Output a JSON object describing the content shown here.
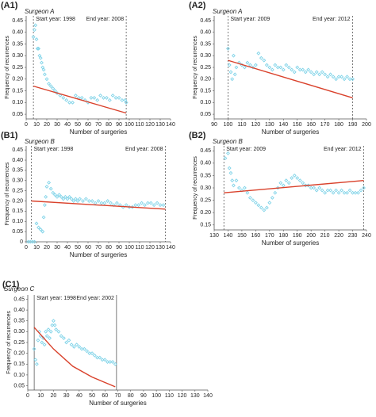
{
  "chart_data": [
    {
      "type": "scatter",
      "panel_label": "(A1)",
      "surgeon": "Surgeon A",
      "start_text": "Start year: 1998",
      "end_text": "End year: 2008",
      "x_label": "Number of surgeries",
      "y_label": "Frequency of recurrences",
      "xlim": [
        0,
        140
      ],
      "xticks": [
        0,
        10,
        20,
        30,
        40,
        50,
        60,
        70,
        80,
        90,
        100,
        110,
        120,
        130,
        140
      ],
      "ylim": [
        0.03,
        0.47
      ],
      "yticks": [
        0.05,
        {
          "value": 0.1,
          "label": "0.10"
        },
        0.15,
        {
          "value": 0.2,
          "label": "0.20"
        },
        0.25,
        {
          "value": 0.3,
          "label": "0.30"
        },
        0.35,
        {
          "value": 0.4,
          "label": "0.40"
        },
        0.45
      ],
      "vlines": [
        7,
        97
      ],
      "points": {
        "color": "#7fd3e8",
        "x": [
          7,
          8,
          9,
          10,
          11,
          12,
          13,
          14,
          15,
          16,
          17,
          18,
          20,
          22,
          24,
          26,
          28,
          30,
          33,
          36,
          39,
          42,
          45,
          48,
          51,
          54,
          57,
          60,
          63,
          66,
          69,
          72,
          75,
          78,
          81,
          84,
          87,
          90,
          93,
          96,
          97
        ],
        "values": [
          0.38,
          0.41,
          0.43,
          0.37,
          0.33,
          0.33,
          0.3,
          0.29,
          0.27,
          0.25,
          0.24,
          0.22,
          0.2,
          0.18,
          0.17,
          0.16,
          0.15,
          0.14,
          0.13,
          0.12,
          0.11,
          0.1,
          0.1,
          0.13,
          0.12,
          0.12,
          0.11,
          0.1,
          0.12,
          0.12,
          0.11,
          0.13,
          0.12,
          0.12,
          0.11,
          0.13,
          0.12,
          0.12,
          0.11,
          0.11,
          0.1
        ]
      },
      "trend": {
        "color": "#d9412b",
        "x": [
          7,
          97
        ],
        "values": [
          0.17,
          0.055
        ]
      }
    },
    {
      "type": "scatter",
      "panel_label": "(A2)",
      "surgeon": "Surgeon A",
      "start_text": "Start year: 2009",
      "end_text": "End year: 2012",
      "x_label": "Number of surgeries",
      "y_label": "Frequency of recurrences",
      "xlim": [
        90,
        200
      ],
      "xticks": [
        90,
        100,
        110,
        120,
        130,
        140,
        150,
        160,
        170,
        180,
        190,
        200
      ],
      "ylim": [
        0.03,
        0.47
      ],
      "yticks": [
        0.05,
        {
          "value": 0.1,
          "label": "0.10"
        },
        0.15,
        {
          "value": 0.2,
          "label": "0.20"
        },
        0.25,
        {
          "value": 0.3,
          "label": "0.30"
        },
        0.35,
        {
          "value": 0.4,
          "label": "0.40"
        },
        0.45
      ],
      "vlines": [
        100,
        190
      ],
      "points": {
        "color": "#7fd3e8",
        "x": [
          100,
          101,
          102,
          103,
          104,
          105,
          106,
          108,
          110,
          112,
          114,
          116,
          118,
          120,
          122,
          124,
          126,
          128,
          130,
          132,
          134,
          136,
          138,
          140,
          142,
          144,
          146,
          148,
          150,
          152,
          154,
          156,
          158,
          160,
          162,
          164,
          166,
          168,
          170,
          172,
          174,
          176,
          178,
          180,
          182,
          184,
          186,
          188,
          190
        ],
        "values": [
          0.33,
          0.26,
          0.23,
          0.2,
          0.3,
          0.22,
          0.25,
          0.27,
          0.26,
          0.25,
          0.27,
          0.26,
          0.25,
          0.26,
          0.31,
          0.29,
          0.28,
          0.26,
          0.25,
          0.24,
          0.26,
          0.25,
          0.25,
          0.24,
          0.26,
          0.25,
          0.24,
          0.23,
          0.25,
          0.24,
          0.24,
          0.23,
          0.24,
          0.23,
          0.22,
          0.23,
          0.22,
          0.23,
          0.22,
          0.21,
          0.22,
          0.21,
          0.2,
          0.21,
          0.21,
          0.2,
          0.21,
          0.2,
          0.2
        ]
      },
      "trend": {
        "color": "#d9412b",
        "x": [
          100,
          190
        ],
        "values": [
          0.28,
          0.12
        ]
      }
    },
    {
      "type": "scatter",
      "panel_label": "(B1)",
      "surgeon": "Surgeon B",
      "start_text": "Start year: 1998",
      "end_text": "End year: 2008",
      "x_label": "Number of surgeries",
      "y_label": "Frequency of recurrences",
      "xlim": [
        0,
        140
      ],
      "xticks": [
        0,
        10,
        20,
        30,
        40,
        50,
        60,
        70,
        80,
        90,
        100,
        110,
        120,
        130,
        140
      ],
      "ylim": [
        0,
        0.47
      ],
      "yticks": [
        0,
        0.05,
        {
          "value": 0.1,
          "label": "0.10"
        },
        0.15,
        {
          "value": 0.2,
          "label": "0.20"
        },
        0.25,
        {
          "value": 0.3,
          "label": "0.30"
        },
        0.35,
        {
          "value": 0.4,
          "label": "0.40"
        },
        0.45
      ],
      "vlines": [
        5,
        135
      ],
      "points": {
        "color": "#7fd3e8",
        "x": [
          2,
          4,
          6,
          8,
          10,
          12,
          14,
          16,
          17,
          18,
          19,
          20,
          22,
          24,
          26,
          28,
          30,
          32,
          34,
          36,
          38,
          40,
          42,
          44,
          46,
          48,
          50,
          52,
          55,
          58,
          61,
          64,
          67,
          70,
          73,
          76,
          79,
          82,
          85,
          88,
          91,
          94,
          97,
          100,
          103,
          106,
          109,
          112,
          115,
          118,
          121,
          124,
          127,
          130,
          133
        ],
        "values": [
          0,
          0,
          0,
          0,
          0.09,
          0.07,
          0.06,
          0.05,
          0.12,
          0.18,
          0.22,
          0.27,
          0.29,
          0.26,
          0.24,
          0.23,
          0.22,
          0.23,
          0.22,
          0.21,
          0.22,
          0.21,
          0.22,
          0.21,
          0.2,
          0.21,
          0.2,
          0.21,
          0.2,
          0.21,
          0.2,
          0.2,
          0.19,
          0.2,
          0.19,
          0.19,
          0.2,
          0.19,
          0.18,
          0.19,
          0.18,
          0.17,
          0.18,
          0.17,
          0.17,
          0.18,
          0.18,
          0.19,
          0.18,
          0.19,
          0.19,
          0.18,
          0.19,
          0.18,
          0.18
        ]
      },
      "trend": {
        "color": "#d9412b",
        "x": [
          5,
          135
        ],
        "values": [
          0.2,
          0.16
        ]
      }
    },
    {
      "type": "scatter",
      "panel_label": "(B2)",
      "surgeon": "Surgeon B",
      "start_text": "Start year: 2009",
      "end_text": "End year: 2012",
      "x_label": "Number of surgeries",
      "y_label": "Frequency of recurrences",
      "xlim": [
        130,
        240
      ],
      "xticks": [
        130,
        140,
        150,
        160,
        170,
        180,
        190,
        200,
        210,
        220,
        230,
        240
      ],
      "ylim": [
        0.13,
        0.47
      ],
      "yticks": [
        0.15,
        {
          "value": 0.2,
          "label": "0.20"
        },
        0.25,
        {
          "value": 0.3,
          "label": "0.30"
        },
        0.35,
        {
          "value": 0.4,
          "label": "0.40"
        },
        0.45
      ],
      "vlines": [
        137,
        238
      ],
      "points": {
        "color": "#7fd3e8",
        "x": [
          138,
          140,
          141,
          142,
          143,
          144,
          146,
          148,
          150,
          152,
          154,
          156,
          158,
          160,
          162,
          164,
          166,
          168,
          170,
          172,
          174,
          176,
          178,
          180,
          182,
          184,
          186,
          188,
          190,
          192,
          194,
          196,
          198,
          200,
          202,
          204,
          206,
          208,
          210,
          212,
          214,
          216,
          218,
          220,
          222,
          224,
          226,
          228,
          230,
          232,
          234,
          236,
          238
        ],
        "values": [
          0.42,
          0.44,
          0.38,
          0.36,
          0.33,
          0.31,
          0.33,
          0.3,
          0.29,
          0.3,
          0.28,
          0.26,
          0.25,
          0.24,
          0.23,
          0.22,
          0.21,
          0.22,
          0.24,
          0.26,
          0.28,
          0.3,
          0.32,
          0.31,
          0.33,
          0.32,
          0.34,
          0.35,
          0.34,
          0.33,
          0.32,
          0.31,
          0.31,
          0.3,
          0.3,
          0.29,
          0.3,
          0.29,
          0.28,
          0.29,
          0.29,
          0.28,
          0.29,
          0.28,
          0.29,
          0.28,
          0.28,
          0.29,
          0.28,
          0.28,
          0.28,
          0.29,
          0.3
        ]
      },
      "trend": {
        "color": "#d9412b",
        "x": [
          137,
          238
        ],
        "values": [
          0.28,
          0.33
        ]
      }
    },
    {
      "type": "scatter",
      "panel_label": "(C1)",
      "surgeon": "Surgeon C",
      "start_text": "Start year: 1998",
      "end_text": "End year: 2002",
      "x_label": "Number of surgeries",
      "y_label": "Frequency of recurrences",
      "xlim": [
        0,
        140
      ],
      "xticks": [
        0,
        10,
        20,
        30,
        40,
        50,
        60,
        70,
        80,
        90,
        100,
        110,
        120,
        130,
        140
      ],
      "ylim": [
        0.03,
        0.47
      ],
      "yticks": [
        0.05,
        {
          "value": 0.1,
          "label": "0.10"
        },
        0.15,
        {
          "value": 0.2,
          "label": "0.20"
        },
        0.25,
        {
          "value": 0.3,
          "label": "0.30"
        },
        0.35,
        {
          "value": 0.4,
          "label": "0.40"
        },
        0.45
      ],
      "vlines": [
        5,
        69
      ],
      "points": {
        "color": "#7fd3e8",
        "x": [
          5,
          6,
          7,
          8,
          9,
          10,
          11,
          12,
          13,
          14,
          15,
          16,
          17,
          18,
          19,
          20,
          21,
          22,
          24,
          26,
          28,
          30,
          32,
          34,
          36,
          38,
          40,
          42,
          44,
          46,
          48,
          50,
          52,
          54,
          56,
          58,
          60,
          62,
          64,
          66,
          68
        ],
        "values": [
          0.22,
          0.17,
          0.15,
          0.26,
          0.3,
          0.28,
          0.25,
          0.27,
          0.24,
          0.3,
          0.28,
          0.31,
          0.27,
          0.3,
          0.33,
          0.35,
          0.33,
          0.31,
          0.3,
          0.28,
          0.27,
          0.25,
          0.26,
          0.24,
          0.23,
          0.24,
          0.23,
          0.22,
          0.22,
          0.21,
          0.2,
          0.2,
          0.19,
          0.18,
          0.18,
          0.17,
          0.17,
          0.16,
          0.16,
          0.16,
          0.15
        ]
      },
      "trend": {
        "color": "#d9412b",
        "x": [
          5,
          20,
          35,
          50,
          68
        ],
        "values": [
          0.32,
          0.22,
          0.14,
          0.09,
          0.045
        ]
      }
    }
  ]
}
